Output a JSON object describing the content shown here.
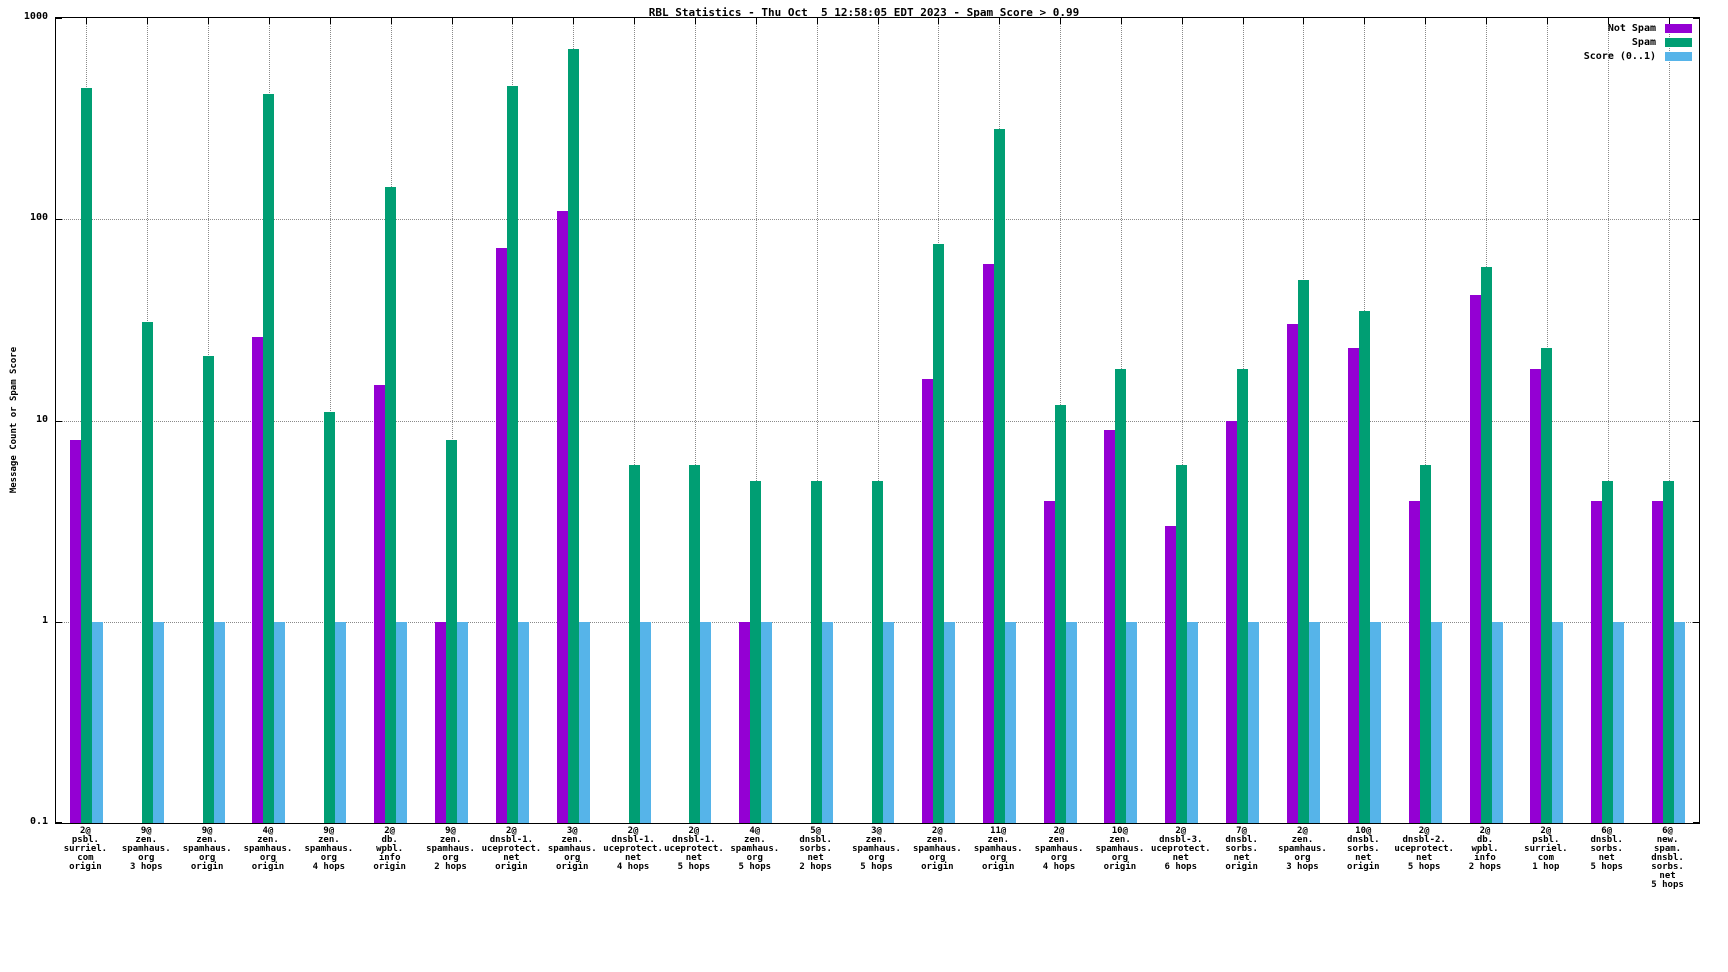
{
  "title": "RBL Statistics - Thu Oct  5 12:58:05 EDT 2023 - Spam Score > 0.99",
  "ylabel": "Message Count or Spam Score",
  "chart_data": {
    "type": "bar",
    "y_scale": "log",
    "ylim": [
      0.1,
      1000
    ],
    "y_ticks": [
      "0.1",
      "1",
      "10",
      "100",
      "1000"
    ],
    "grid": true,
    "legend_position": "top-right",
    "categories": [
      [
        "2@",
        "psbl.",
        "surriel.",
        "com",
        "origin"
      ],
      [
        "9@",
        "zen.",
        "spamhaus.",
        "org",
        "3 hops"
      ],
      [
        "9@",
        "zen.",
        "spamhaus.",
        "org",
        "origin"
      ],
      [
        "4@",
        "zen.",
        "spamhaus.",
        "org",
        "origin"
      ],
      [
        "9@",
        "zen.",
        "spamhaus.",
        "org",
        "4 hops"
      ],
      [
        "2@",
        "db.",
        "wpbl.",
        "info",
        "origin"
      ],
      [
        "9@",
        "zen.",
        "spamhaus.",
        "org",
        "2 hops"
      ],
      [
        "2@",
        "dnsbl-1.",
        "uceprotect.",
        "net",
        "origin"
      ],
      [
        "3@",
        "zen.",
        "spamhaus.",
        "org",
        "origin"
      ],
      [
        "2@",
        "dnsbl-1.",
        "uceprotect.",
        "net",
        "4 hops"
      ],
      [
        "2@",
        "dnsbl-1.",
        "uceprotect.",
        "net",
        "5 hops"
      ],
      [
        "4@",
        "zen.",
        "spamhaus.",
        "org",
        "5 hops"
      ],
      [
        "5@",
        "dnsbl.",
        "sorbs.",
        "net",
        "2 hops"
      ],
      [
        "3@",
        "zen.",
        "spamhaus.",
        "org",
        "5 hops"
      ],
      [
        "2@",
        "zen.",
        "spamhaus.",
        "org",
        "origin"
      ],
      [
        "11@",
        "zen.",
        "spamhaus.",
        "org",
        "origin"
      ],
      [
        "2@",
        "zen.",
        "spamhaus.",
        "org",
        "4 hops"
      ],
      [
        "10@",
        "zen.",
        "spamhaus.",
        "org",
        "origin"
      ],
      [
        "2@",
        "dnsbl-3.",
        "uceprotect.",
        "net",
        "6 hops"
      ],
      [
        "7@",
        "dnsbl.",
        "sorbs.",
        "net",
        "origin"
      ],
      [
        "2@",
        "zen.",
        "spamhaus.",
        "org",
        "3 hops"
      ],
      [
        "10@",
        "dnsbl.",
        "sorbs.",
        "net",
        "origin"
      ],
      [
        "2@",
        "dnsbl-2.",
        "uceprotect.",
        "net",
        "5 hops"
      ],
      [
        "2@",
        "db.",
        "wpbl.",
        "info",
        "2 hops"
      ],
      [
        "2@",
        "psbl.",
        "surriel.",
        "com",
        "1 hop"
      ],
      [
        "6@",
        "dnsbl.",
        "sorbs.",
        "net",
        "5 hops"
      ],
      [
        "6@",
        "new.",
        "spam.",
        "dnsbl.",
        "sorbs.",
        "net",
        "5 hops"
      ]
    ],
    "series": [
      {
        "name": "Not Spam",
        "color": "#9400d3",
        "values": [
          8,
          null,
          null,
          26,
          null,
          15,
          1,
          72,
          110,
          null,
          null,
          1,
          null,
          null,
          16,
          60,
          4,
          9,
          3,
          10,
          30,
          23,
          4,
          42,
          18,
          4,
          4
        ]
      },
      {
        "name": "Spam",
        "color": "#009e73",
        "values": [
          450,
          31,
          21,
          420,
          11,
          145,
          8,
          460,
          700,
          6,
          6,
          5,
          5,
          5,
          75,
          280,
          12,
          18,
          6,
          18,
          50,
          35,
          6,
          58,
          23,
          5,
          5
        ]
      },
      {
        "name": "Score (0..1)",
        "color": "#56b4e9",
        "values": [
          1,
          1,
          1,
          1,
          1,
          1,
          1,
          1,
          1,
          1,
          1,
          1,
          1,
          1,
          1,
          1,
          1,
          1,
          1,
          1,
          1,
          1,
          1,
          1,
          1,
          1,
          1
        ]
      }
    ]
  }
}
